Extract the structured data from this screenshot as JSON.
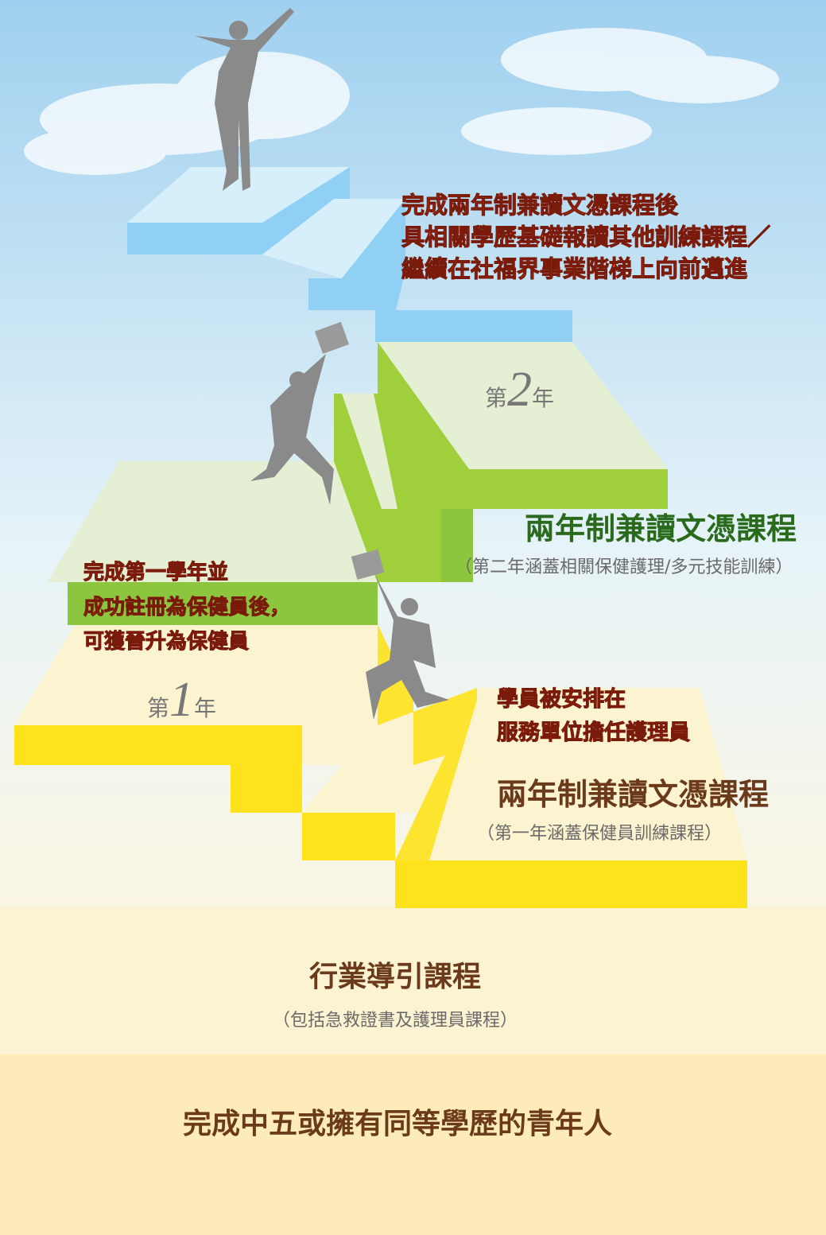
{
  "top_step": {
    "lines": [
      "完成兩年制兼讀文憑課程後",
      "具相關學歷基礎報讀其他訓練課程／",
      "繼續在社福界事業階梯上向前邁進"
    ]
  },
  "year2": {
    "prefix": "第",
    "number": "2",
    "suffix": "年",
    "title": "兩年制兼讀文憑課程",
    "subtitle": "（第二年涵蓋相關保健護理/多元技能訓練）"
  },
  "promotion": {
    "lines": [
      "完成第一學年並",
      "成功註冊為保健員後，",
      "可獲晉升為保健員"
    ]
  },
  "year1": {
    "prefix": "第",
    "number": "1",
    "suffix": "年",
    "placement": [
      "學員被安排在",
      "服務單位擔任護理員"
    ],
    "title": "兩年制兼讀文憑課程",
    "subtitle": "（第一年涵蓋保健員訓練課程）"
  },
  "foundation": {
    "title": "行業導引課程",
    "subtitle": "（包括急救證書及護理員課程）"
  },
  "entry": {
    "title": "完成中五或擁有同等學歷的青年人"
  }
}
